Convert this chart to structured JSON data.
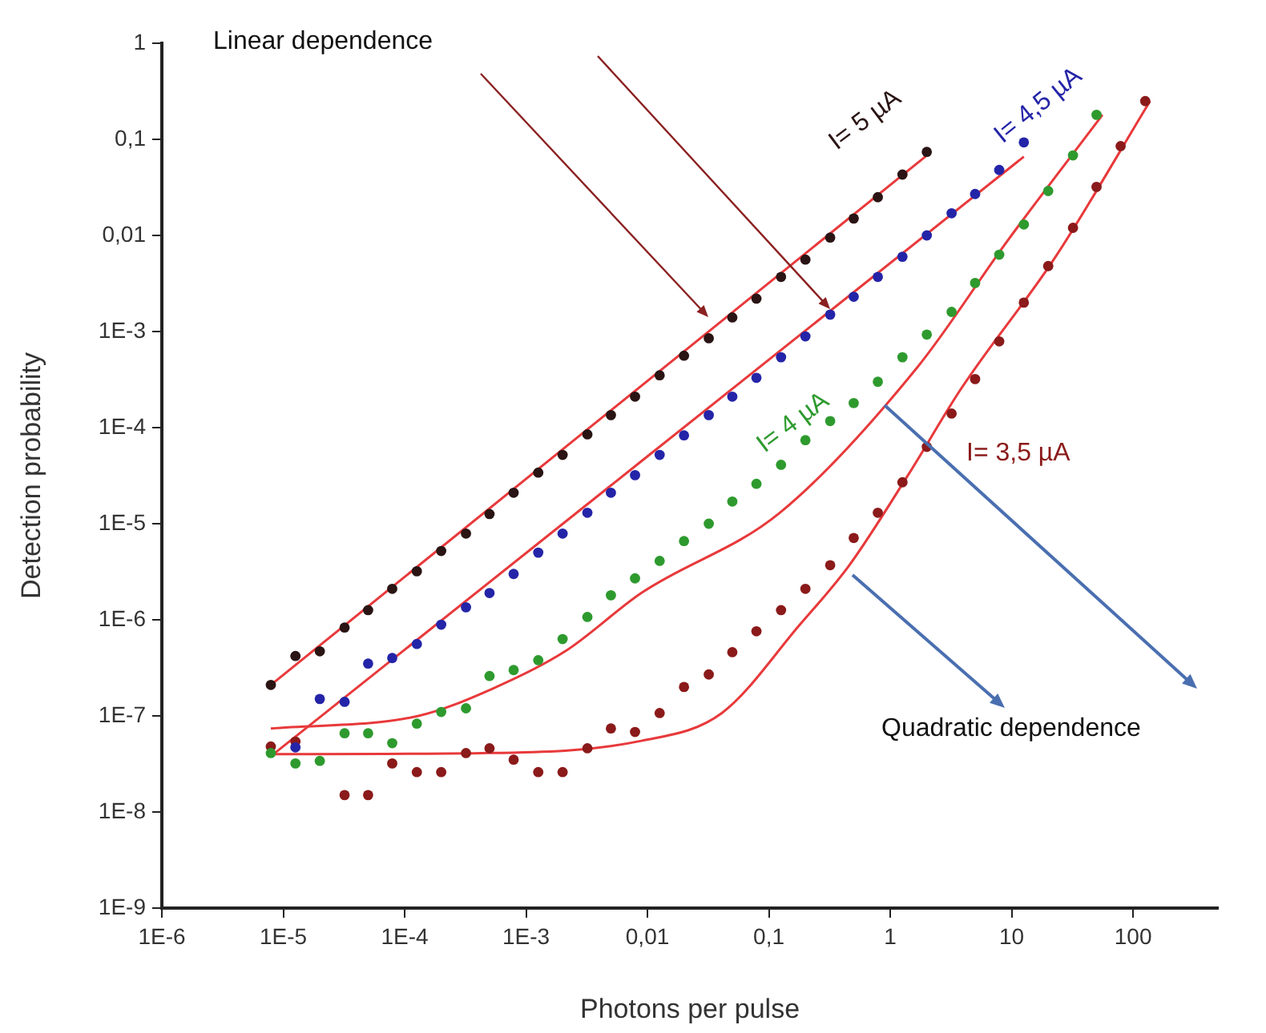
{
  "chart_data": {
    "type": "scatter",
    "xlabel": "Photons per pulse",
    "ylabel": "Detection probability",
    "annotations": [
      "Linear dependence",
      "Quadratic dependence"
    ],
    "log": "xy",
    "grid": false,
    "legend": false,
    "marker": "circle",
    "xlim": [
      1e-06,
      500
    ],
    "ylim": [
      1e-09,
      1
    ],
    "xticks": [
      {
        "value": 1e-06,
        "label": "1E-6"
      },
      {
        "value": 1e-05,
        "label": "1E-5"
      },
      {
        "value": 0.0001,
        "label": "1E-4"
      },
      {
        "value": 0.001,
        "label": "1E-3"
      },
      {
        "value": 0.01,
        "label": "0,01"
      },
      {
        "value": 0.1,
        "label": "0,1"
      },
      1,
      10,
      100
    ],
    "yticks": [
      {
        "value": 1e-09,
        "label": "1E-9"
      },
      {
        "value": 1e-08,
        "label": "1E-8"
      },
      {
        "value": 1e-07,
        "label": "1E-7"
      },
      {
        "value": 1e-06,
        "label": "1E-6"
      },
      {
        "value": 1e-05,
        "label": "1E-5"
      },
      {
        "value": 0.0001,
        "label": "1E-4"
      },
      {
        "value": 0.001,
        "label": "1E-3"
      },
      {
        "value": 0.01,
        "label": "0,01"
      },
      {
        "value": 0.1,
        "label": "0,1"
      },
      1
    ],
    "series": [
      {
        "name": "I= 5 µA",
        "type": "scatter",
        "color": "#2a1414",
        "x": [
          7.9e-06,
          1.26e-05,
          2e-05,
          3.2e-05,
          5e-05,
          7.9e-05,
          0.000126,
          0.0002,
          0.00032,
          0.0005,
          0.00079,
          0.00126,
          0.002,
          0.0032,
          0.005,
          0.0079,
          0.0126,
          0.02,
          0.032,
          0.05,
          0.079,
          0.126,
          0.2,
          0.32,
          0.5,
          0.79,
          1.26,
          2
        ],
        "values": [
          2.1e-07,
          4.2e-07,
          4.7e-07,
          8.3e-07,
          1.26e-06,
          2.1e-06,
          3.2e-06,
          5.2e-06,
          7.9e-06,
          1.26e-05,
          2.1e-05,
          3.4e-05,
          5.2e-05,
          8.5e-05,
          0.000135,
          0.00021,
          0.00035,
          0.00056,
          0.00085,
          0.0014,
          0.0022,
          0.0037,
          0.0056,
          0.0095,
          0.015,
          0.025,
          0.043,
          0.074
        ]
      },
      {
        "name": "I= 4,5 µA",
        "type": "scatter",
        "color": "#2424a8",
        "x": [
          1.26e-05,
          2e-05,
          3.2e-05,
          5e-05,
          7.9e-05,
          0.000126,
          0.0002,
          0.00032,
          0.0005,
          0.00079,
          0.00126,
          0.002,
          0.0032,
          0.005,
          0.0079,
          0.0126,
          0.02,
          0.032,
          0.05,
          0.079,
          0.126,
          0.2,
          0.32,
          0.5,
          0.79,
          1.26,
          2,
          3.2,
          5,
          7.9,
          12.6
        ],
        "values": [
          4.7e-08,
          1.5e-07,
          1.4e-07,
          3.5e-07,
          4e-07,
          5.6e-07,
          8.9e-07,
          1.35e-06,
          1.9e-06,
          3e-06,
          5e-06,
          7.9e-06,
          1.3e-05,
          2.1e-05,
          3.2e-05,
          5.2e-05,
          8.3e-05,
          0.000135,
          0.00021,
          0.00033,
          0.00054,
          0.00089,
          0.0015,
          0.0023,
          0.0037,
          0.006,
          0.01,
          0.017,
          0.027,
          0.048,
          0.093
        ]
      },
      {
        "name": "I= 4 µA",
        "type": "scatter",
        "color": "#2e9a2e",
        "x": [
          7.9e-06,
          1.26e-05,
          2e-05,
          3.2e-05,
          5e-05,
          7.9e-05,
          0.000126,
          0.0002,
          0.00032,
          0.0005,
          0.00079,
          0.00126,
          0.002,
          0.0032,
          0.005,
          0.0079,
          0.0126,
          0.02,
          0.032,
          0.05,
          0.079,
          0.126,
          0.2,
          0.32,
          0.5,
          0.79,
          1.26,
          2,
          3.2,
          5,
          7.9,
          12.6,
          20,
          32,
          50
        ],
        "values": [
          4.1e-08,
          3.2e-08,
          3.4e-08,
          6.6e-08,
          6.6e-08,
          5.2e-08,
          8.3e-08,
          1.1e-07,
          1.2e-07,
          2.6e-07,
          3e-07,
          3.8e-07,
          6.3e-07,
          1.07e-06,
          1.8e-06,
          2.7e-06,
          4.1e-06,
          6.6e-06,
          1e-05,
          1.7e-05,
          2.6e-05,
          4.1e-05,
          7.4e-05,
          0.000117,
          0.00018,
          0.0003,
          0.00054,
          0.00093,
          0.0016,
          0.0032,
          0.0063,
          0.013,
          0.029,
          0.068,
          0.18
        ]
      },
      {
        "name": "I= 3,5 µA",
        "type": "scatter",
        "color": "#8b1a1a",
        "x": [
          7.9e-06,
          1.26e-05,
          2e-05,
          3.2e-05,
          5e-05,
          7.9e-05,
          0.000126,
          0.0002,
          0.00032,
          0.0005,
          0.00079,
          0.00126,
          0.002,
          0.0032,
          0.005,
          0.0079,
          0.0126,
          0.02,
          0.032,
          0.05,
          0.079,
          0.126,
          0.2,
          0.32,
          0.5,
          0.79,
          1.26,
          2,
          3.2,
          5,
          7.9,
          12.6,
          20,
          32,
          50,
          79,
          126
        ],
        "values": [
          4.8e-08,
          5.4e-08,
          null,
          1.5e-08,
          1.5e-08,
          3.2e-08,
          2.6e-08,
          2.6e-08,
          4.1e-08,
          4.6e-08,
          3.5e-08,
          2.6e-08,
          2.6e-08,
          4.6e-08,
          7.4e-08,
          6.8e-08,
          1.07e-07,
          2e-07,
          2.7e-07,
          4.6e-07,
          7.6e-07,
          1.26e-06,
          2.1e-06,
          3.7e-06,
          7.1e-06,
          1.3e-05,
          2.7e-05,
          6.3e-05,
          0.00014,
          0.00032,
          0.00079,
          0.002,
          0.0048,
          0.012,
          0.032,
          0.085,
          0.25
        ]
      },
      {
        "type": "line",
        "color": "#e8393b",
        "marker": "none",
        "x": [
          7.9e-06,
          2
        ],
        "values": [
          2.1e-07,
          0.068
        ]
      },
      {
        "type": "line",
        "color": "#e8393b",
        "marker": "none",
        "x": [
          7.9e-06,
          12.6
        ],
        "values": [
          3.8e-08,
          0.066
        ]
      },
      {
        "type": "line",
        "color": "#e8393b",
        "marker": "none",
        "x": [
          7.9e-06,
          0.00013,
          0.00052,
          0.0021,
          0.0089,
          0.123,
          1.66,
          9.3,
          56
        ],
        "values": [
          7.4e-08,
          1e-07,
          1.9e-07,
          4.7e-07,
          1.9e-06,
          1.3e-05,
          0.00042,
          0.0089,
          0.18
        ]
      },
      {
        "type": "line",
        "color": "#e8393b",
        "marker": "none",
        "x": [
          7.9e-06,
          0.00043,
          0.0089,
          0.041,
          0.18,
          0.46,
          1.4,
          3.8,
          23,
          138
        ],
        "values": [
          4e-08,
          4.1e-08,
          5.5e-08,
          1.07e-07,
          8.9e-07,
          3.7e-06,
          3.2e-05,
          0.00025,
          0.006,
          0.25
        ]
      }
    ]
  }
}
